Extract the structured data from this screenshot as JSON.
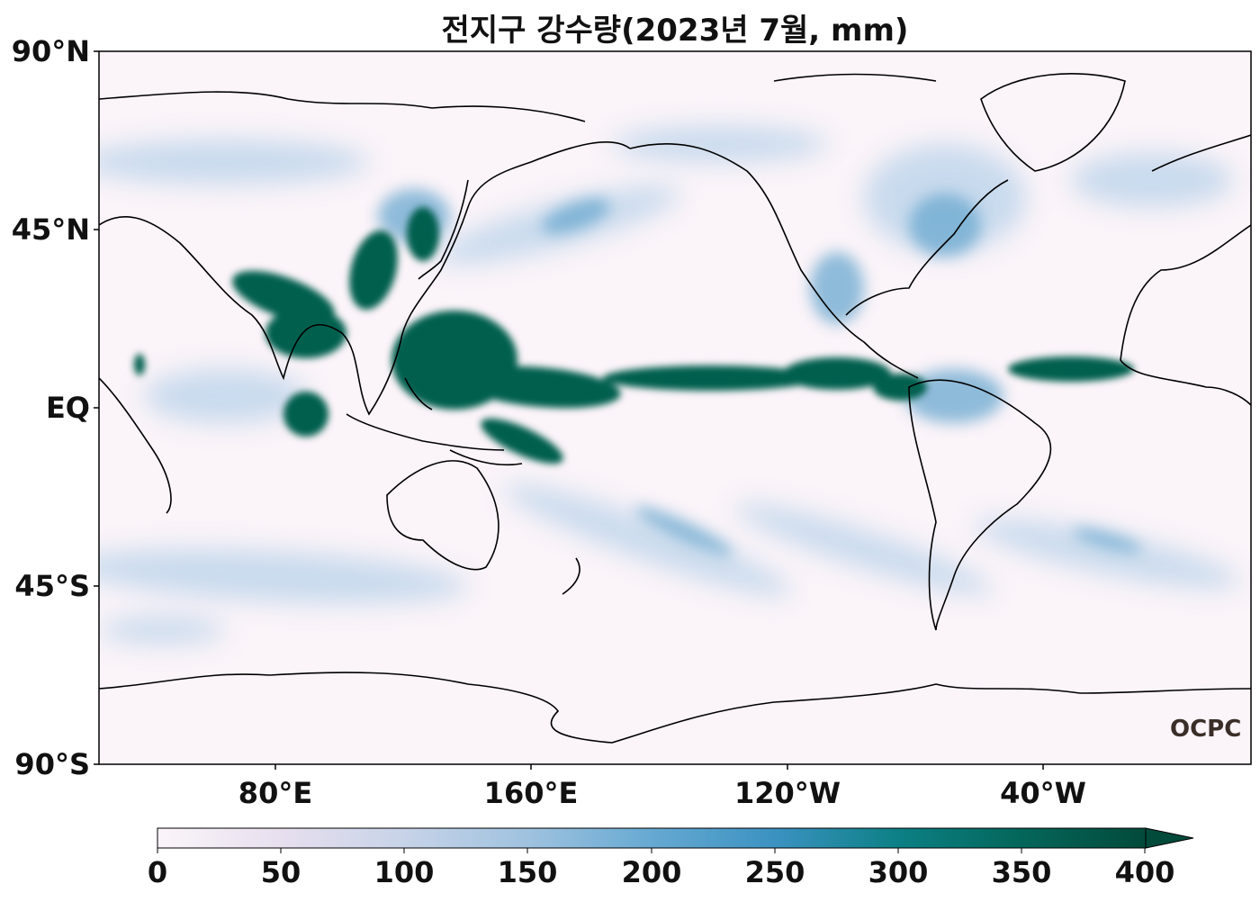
{
  "title": "전지구 강수량(2023년 7월, mm)",
  "latitude_labels": [
    "90°N",
    "45°N",
    "EQ",
    "45°S",
    "90°S"
  ],
  "longitude_labels": [
    "80°E",
    "160°E",
    "120°W",
    "40°W"
  ],
  "colorbar": {
    "ticks": [
      "0",
      "50",
      "100",
      "150",
      "200",
      "250",
      "300",
      "350",
      "400"
    ],
    "min": 0,
    "max": 400,
    "extend": "max",
    "colors": [
      "#fbf5fa",
      "#e7dfee",
      "#c7d3e8",
      "#9fc2df",
      "#66a9d2",
      "#3b92c1",
      "#0c8085",
      "#04665a",
      "#024a3a"
    ]
  },
  "logo_text": "OCPC",
  "colors": {
    "ocean_low": "#fbf4f9",
    "precip_mid": "#7fb6d8",
    "precip_high": "#045e4e",
    "coastline": "#000000"
  }
}
